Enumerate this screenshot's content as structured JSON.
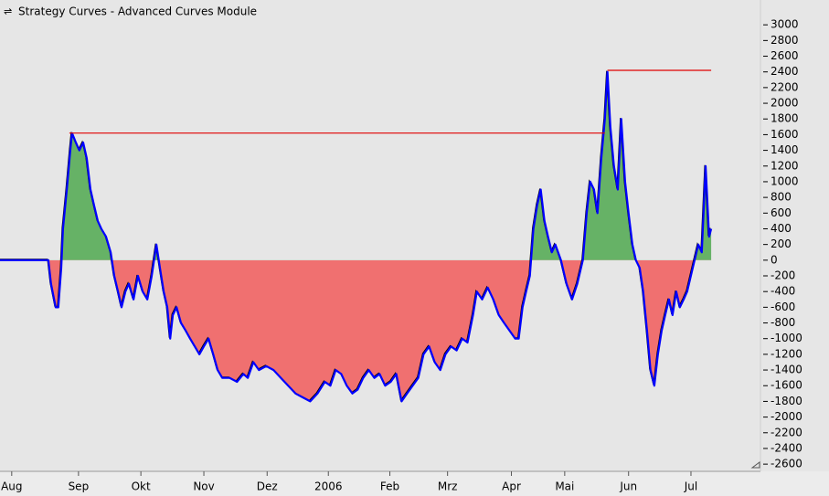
{
  "chart_data": {
    "type": "line",
    "title": "Strategy Curves - Advanced Curves Module",
    "xlim": [
      -4,
      255
    ],
    "ylim": [
      -2680,
      3200
    ],
    "xticks": [
      {
        "value": 0,
        "label": "Aug"
      },
      {
        "value": 22.8,
        "label": "Sep"
      },
      {
        "value": 44.1,
        "label": "Okt"
      },
      {
        "value": 65.6,
        "label": "Nov"
      },
      {
        "value": 87.2,
        "label": "Dez"
      },
      {
        "value": 108.1,
        "label": "2006"
      },
      {
        "value": 129.1,
        "label": "Feb"
      },
      {
        "value": 148.8,
        "label": "Mrz"
      },
      {
        "value": 170.6,
        "label": "Apr"
      },
      {
        "value": 188.8,
        "label": "Mai"
      },
      {
        "value": 210.6,
        "label": "Jun"
      },
      {
        "value": 231.9,
        "label": "Jul"
      }
    ],
    "yticks": [
      3000,
      2800,
      2600,
      2400,
      2200,
      2000,
      1800,
      1600,
      1400,
      1200,
      1000,
      800,
      600,
      400,
      200,
      0,
      -200,
      -400,
      -600,
      -800,
      -1000,
      -1200,
      -1400,
      -1600,
      -1800,
      -2000,
      -2200,
      -2400,
      -2600
    ],
    "positive_fill": "#66b266",
    "negative_fill": "#f07070",
    "series": [
      {
        "color": "#0000ff",
        "x": [
          -4,
          12.5,
          13.4,
          15,
          15.9,
          16.9,
          17.5,
          18.8,
          20,
          20.6,
          21.9,
          23.1,
          24.4,
          25.6,
          26.9,
          28.1,
          29.4,
          30.6,
          32.2,
          33.8,
          35,
          36.3,
          37.5,
          38.8,
          40,
          41.6,
          43.1,
          44.7,
          46.3,
          47.8,
          49.4,
          50.6,
          51.9,
          53.1,
          54.1,
          55,
          56.3,
          57.8,
          59.4,
          60.9,
          62.5,
          64.1,
          65.6,
          67.2,
          68.8,
          70.3,
          71.9,
          74.4,
          76.9,
          79.1,
          80.6,
          82.5,
          84.4,
          86.9,
          89.4,
          91.9,
          94.4,
          96.9,
          99.4,
          101.9,
          104.4,
          106.9,
          108.8,
          110.6,
          112.5,
          114.4,
          116.3,
          118.1,
          120,
          121.9,
          123.8,
          125.6,
          127.5,
          129.4,
          131.3,
          133.1,
          135,
          136.9,
          138.8,
          140.6,
          142.5,
          144.4,
          146.3,
          148.1,
          150,
          151.9,
          153.8,
          155.6,
          157.5,
          158.8,
          160.6,
          162.5,
          164.4,
          166.3,
          168.1,
          170,
          171.9,
          173.1,
          174.4,
          175.6,
          176.9,
          178.1,
          179.4,
          180.6,
          181.9,
          183.1,
          184.4,
          185.6,
          187.5,
          189.4,
          191.3,
          193.1,
          195,
          196.3,
          197.5,
          198.8,
          200,
          201.3,
          202.5,
          203.4,
          204.4,
          205.6,
          206.9,
          208.1,
          209.4,
          210.6,
          211.9,
          213.1,
          214.4,
          215.6,
          216.9,
          218.1,
          219.4,
          220.6,
          221.9,
          223.1,
          224.4,
          225.6,
          226.9,
          228.1,
          229.4,
          230.6,
          232.5,
          234.4,
          235.6,
          236.9,
          238.1,
          238.8
        ],
        "values": [
          0,
          0,
          -300,
          -600,
          -600,
          -100,
          400,
          900,
          1400,
          1620,
          1500,
          1400,
          1500,
          1300,
          900,
          700,
          500,
          400,
          300,
          100,
          -200,
          -400,
          -600,
          -400,
          -300,
          -500,
          -200,
          -400,
          -500,
          -200,
          200,
          -100,
          -400,
          -600,
          -1000,
          -700,
          -600,
          -800,
          -900,
          -1000,
          -1100,
          -1200,
          -1100,
          -1000,
          -1200,
          -1400,
          -1500,
          -1500,
          -1550,
          -1450,
          -1500,
          -1300,
          -1400,
          -1350,
          -1400,
          -1500,
          -1600,
          -1700,
          -1750,
          -1800,
          -1700,
          -1550,
          -1600,
          -1400,
          -1450,
          -1600,
          -1700,
          -1650,
          -1500,
          -1400,
          -1500,
          -1450,
          -1600,
          -1550,
          -1450,
          -1800,
          -1700,
          -1600,
          -1500,
          -1200,
          -1100,
          -1300,
          -1400,
          -1200,
          -1100,
          -1150,
          -1000,
          -1050,
          -700,
          -400,
          -500,
          -350,
          -500,
          -700,
          -800,
          -900,
          -1000,
          -1000,
          -600,
          -400,
          -200,
          400,
          700,
          900,
          500,
          300,
          100,
          200,
          0,
          -300,
          -500,
          -300,
          0,
          600,
          1000,
          900,
          600,
          1300,
          1800,
          2400,
          1700,
          1200,
          900,
          1800,
          1000,
          600,
          200,
          0,
          -100,
          -400,
          -900,
          -1400,
          -1600,
          -1200,
          -900,
          -700,
          -500,
          -700,
          -400,
          -600,
          -500,
          -400,
          -100,
          200,
          100,
          1200,
          300,
          400
        ],
        "fill": true
      },
      {
        "color": "#e00000",
        "x": [
          19.7,
          202.5
        ],
        "values": [
          1620,
          1620
        ]
      },
      {
        "color": "#e00000",
        "x": [
          203.4,
          238.8
        ],
        "values": [
          2420,
          2420
        ]
      }
    ]
  }
}
